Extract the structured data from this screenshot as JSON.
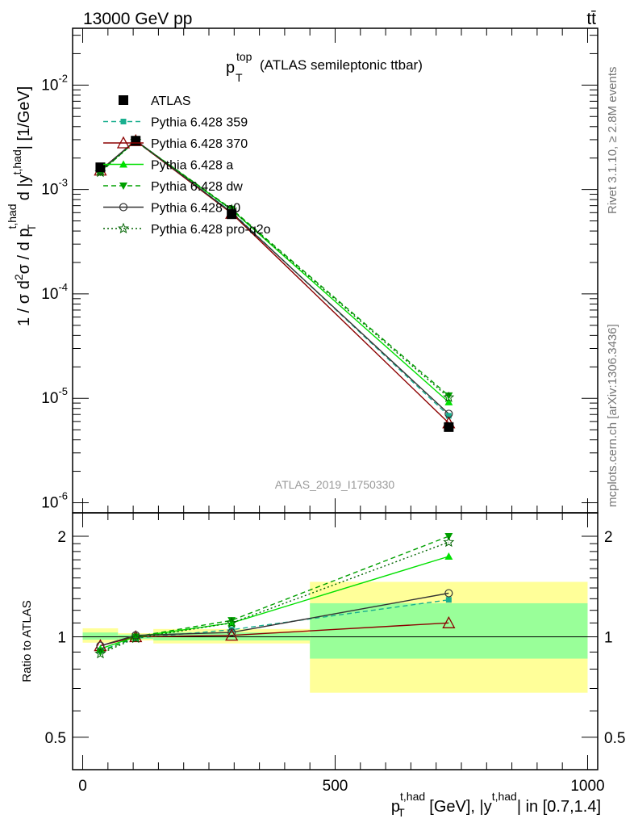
{
  "header": {
    "left": "13000 GeV pp",
    "right": "tt̄"
  },
  "side_labels": {
    "rivet": "Rivet 3.1.10, ≥ 2.8M events",
    "mcplots": "mcplots.cern.ch [arXiv:1306.3436]"
  },
  "plot_title": {
    "main": "p",
    "sup": "top",
    "sub": "T",
    "rest": "(ATLAS semileptonic ttbar)"
  },
  "watermark": "ATLAS_2019_I1750330",
  "colors": {
    "data": "#000000",
    "p359": "#1aaf8f",
    "p370": "#8b0000",
    "pa": "#00e000",
    "pdw": "#00a000",
    "pp0": "#333333",
    "pq2o": "#006400",
    "band_yellow": "#ffff99",
    "band_green": "#99ff99"
  },
  "chart_data": [
    {
      "type": "line",
      "panel": "main",
      "yscale": "log",
      "ylabel": "1 / σ d²σ / d p_T^{t,had} d |y^{t,had}| [1/GeV]",
      "ylim": [
        8e-07,
        0.035
      ],
      "xlim": [
        -20,
        1020
      ],
      "yticks": [
        {
          "value": 1e-06,
          "base": "10",
          "exp": "-6"
        },
        {
          "value": 1e-05,
          "base": "10",
          "exp": "-5"
        },
        {
          "value": 0.0001,
          "base": "10",
          "exp": "-4"
        },
        {
          "value": 0.001,
          "base": "10",
          "exp": "-3"
        },
        {
          "value": 0.01,
          "base": "10",
          "exp": "-2"
        }
      ],
      "x": [
        35,
        105,
        295,
        725
      ],
      "data": {
        "name": "ATLAS",
        "values": [
          0.00163,
          0.00293,
          0.00058,
          5.3e-06
        ]
      },
      "series": [
        {
          "key": "p359",
          "name": "Pythia 6.428 359",
          "dash": "6,4",
          "marker": "square-small",
          "values": [
            0.00147,
            0.0029,
            0.00061,
            6.8e-06
          ]
        },
        {
          "key": "p370",
          "name": "Pythia 6.428 370",
          "dash": "",
          "marker": "triangle-open",
          "values": [
            0.00153,
            0.00293,
            0.00059,
            5.8e-06
          ]
        },
        {
          "key": "pa",
          "name": "Pythia 6.428 a",
          "dash": "",
          "marker": "triangle-filled",
          "values": [
            0.00149,
            0.00293,
            0.00064,
            9.2e-06
          ]
        },
        {
          "key": "pdw",
          "name": "Pythia 6.428 dw",
          "dash": "6,4",
          "marker": "triangle-down",
          "values": [
            0.00146,
            0.00293,
            0.00065,
            1.06e-05
          ]
        },
        {
          "key": "pp0",
          "name": "Pythia 6.428 p0",
          "dash": "",
          "marker": "circle-open",
          "values": [
            0.00152,
            0.00296,
            0.0006,
            7.1e-06
          ]
        },
        {
          "key": "pq2o",
          "name": "Pythia 6.428 pro-q2o",
          "dash": "2,3",
          "marker": "star",
          "values": [
            0.00146,
            0.00291,
            0.00064,
            1.02e-05
          ]
        }
      ]
    },
    {
      "type": "line",
      "panel": "ratio",
      "yscale": "log",
      "ylabel": "Ratio to ATLAS",
      "ylim": [
        0.4,
        2.35
      ],
      "xlim": [
        -20,
        1020
      ],
      "yticks": [
        {
          "value": 0.5,
          "label": "0.5"
        },
        {
          "value": 1,
          "label": "1"
        },
        {
          "value": 2,
          "label": "2"
        }
      ],
      "xticks": [
        {
          "value": 0,
          "label": "0"
        },
        {
          "value": 500,
          "label": "500"
        },
        {
          "value": 1000,
          "label": "1000"
        }
      ],
      "xlabel": "p_T^{t,had} [GeV], |y^{t,had}| in [0.7,1.4]",
      "x": [
        35,
        105,
        295,
        725
      ],
      "bands": [
        {
          "x0": 0,
          "x1": 70,
          "yellow": [
            0.96,
            1.06
          ],
          "green": [
            0.98,
            1.03
          ]
        },
        {
          "x0": 70,
          "x1": 140,
          "yellow": [
            0.975,
            1.025
          ],
          "green": [
            0.985,
            1.015
          ]
        },
        {
          "x0": 140,
          "x1": 450,
          "yellow": [
            0.955,
            1.055
          ],
          "green": [
            0.975,
            1.03
          ]
        },
        {
          "x0": 450,
          "x1": 1000,
          "yellow": [
            0.68,
            1.46
          ],
          "green": [
            0.86,
            1.26
          ]
        }
      ],
      "series": [
        {
          "key": "p359",
          "name": "Pythia 6.428 359",
          "dash": "6,4",
          "marker": "square-small",
          "values": [
            0.91,
            0.99,
            1.05,
            1.29
          ]
        },
        {
          "key": "p370",
          "name": "Pythia 6.428 370",
          "dash": "",
          "marker": "triangle-open",
          "values": [
            0.94,
            1.0,
            1.01,
            1.1
          ]
        },
        {
          "key": "pa",
          "name": "Pythia 6.428 a",
          "dash": "",
          "marker": "triangle-filled",
          "values": [
            0.92,
            1.0,
            1.1,
            1.74
          ]
        },
        {
          "key": "pdw",
          "name": "Pythia 6.428 dw",
          "dash": "6,4",
          "marker": "triangle-down",
          "values": [
            0.9,
            1.0,
            1.12,
            2.0
          ]
        },
        {
          "key": "pp0",
          "name": "Pythia 6.428 p0",
          "dash": "",
          "marker": "circle-open",
          "values": [
            0.94,
            1.01,
            1.03,
            1.35
          ]
        },
        {
          "key": "pq2o",
          "name": "Pythia 6.428 pro-q2o",
          "dash": "2,3",
          "marker": "star",
          "values": [
            0.89,
            0.99,
            1.1,
            1.92
          ]
        }
      ]
    }
  ]
}
